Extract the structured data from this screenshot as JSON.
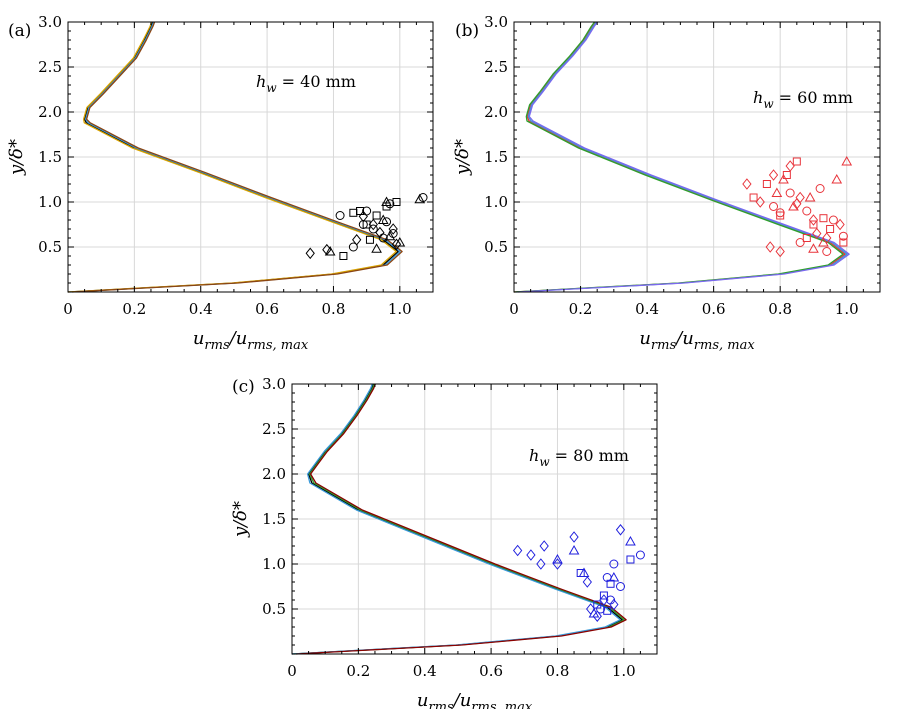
{
  "figure": {
    "colors": {
      "a": [
        "#000000",
        "#3a9ad9",
        "#d9a400",
        "#8b4513"
      ],
      "b": [
        "#e8333a",
        "#3a9ad9",
        "#2ca02c",
        "#7b68ee"
      ],
      "c": [
        "#000000",
        "#2ca02c",
        "#3a9ad9",
        "#8b0000"
      ],
      "a_markers": "#000000",
      "b_markers": "#e8333a",
      "c_markers": "#1f1fdd"
    }
  },
  "chart_data": [
    {
      "id": "a",
      "type": "line",
      "panel_label": "(a)",
      "annotation_prefix": "h",
      "annotation_sub": "w",
      "annotation_value": " = 40 mm",
      "xlabel_main": "u",
      "xlabel_sub1": "rms",
      "xlabel_mid": "/u",
      "xlabel_sub2": "rms, max",
      "ylabel": "y/δ*",
      "xlim": [
        0,
        1.1
      ],
      "ylim": [
        0,
        3.0
      ],
      "x_ticks": [
        0,
        0.2,
        0.4,
        0.6,
        0.8,
        1.0
      ],
      "x_tick_labels": [
        "0",
        "0.2",
        "0.4",
        "0.6",
        "0.8",
        "1.0"
      ],
      "y_ticks": [
        0.5,
        1.0,
        1.5,
        2.0,
        2.5,
        3.0
      ],
      "y_tick_labels": [
        "0.5",
        "1.0",
        "1.5",
        "2.0",
        "2.5",
        "3.0"
      ],
      "grid": true,
      "curve": {
        "x": [
          0.0,
          0.2,
          0.5,
          0.8,
          0.95,
          0.995,
          0.95,
          0.8,
          0.6,
          0.4,
          0.2,
          0.055,
          0.05,
          0.06,
          0.1,
          0.15,
          0.2,
          0.23,
          0.25,
          0.255
        ],
        "y": [
          0.0,
          0.04,
          0.1,
          0.2,
          0.3,
          0.45,
          0.58,
          0.78,
          1.05,
          1.33,
          1.6,
          1.88,
          1.92,
          2.05,
          2.2,
          2.4,
          2.6,
          2.8,
          2.95,
          3.0
        ]
      },
      "markers": {
        "circle": {
          "x": [
            0.82,
            0.86,
            0.9,
            0.95,
            0.98,
            1.07,
            0.92,
            0.96,
            0.89,
            0.97
          ],
          "y": [
            0.85,
            0.5,
            0.9,
            0.6,
            0.65,
            1.05,
            0.7,
            0.78,
            0.75,
            0.98
          ]
        },
        "square": {
          "x": [
            0.83,
            0.88,
            0.9,
            0.93,
            0.99,
            0.96,
            0.91,
            0.86
          ],
          "y": [
            0.4,
            0.9,
            0.75,
            0.85,
            1.0,
            0.95,
            0.58,
            0.88
          ]
        },
        "triangle": {
          "x": [
            0.79,
            0.93,
            0.95,
            0.96,
            1.0,
            1.06,
            0.97
          ],
          "y": [
            0.45,
            0.48,
            0.8,
            1.0,
            0.55,
            1.03,
            0.62
          ]
        },
        "diamond": {
          "x": [
            0.73,
            0.78,
            0.87,
            0.92,
            0.98,
            0.94,
            0.99,
            0.89
          ],
          "y": [
            0.43,
            0.47,
            0.58,
            0.75,
            0.7,
            0.66,
            0.53,
            0.84
          ]
        }
      }
    },
    {
      "id": "b",
      "type": "line",
      "panel_label": "(b)",
      "annotation_prefix": "h",
      "annotation_sub": "w",
      "annotation_value": " = 60 mm",
      "xlabel_main": "u",
      "xlabel_sub1": "rms",
      "xlabel_mid": "/u",
      "xlabel_sub2": "rms, max",
      "ylabel": "y/δ*",
      "xlim": [
        0,
        1.1
      ],
      "ylim": [
        0,
        3.0
      ],
      "x_ticks": [
        0,
        0.2,
        0.4,
        0.6,
        0.8,
        1.0
      ],
      "x_tick_labels": [
        "0",
        "0.2",
        "0.4",
        "0.6",
        "0.8",
        "1.0"
      ],
      "y_ticks": [
        0.5,
        1.0,
        1.5,
        2.0,
        2.5,
        3.0
      ],
      "y_tick_labels": [
        "0.5",
        "1.0",
        "1.5",
        "2.0",
        "2.5",
        "3.0"
      ],
      "grid": true,
      "curve": {
        "x": [
          0.0,
          0.2,
          0.5,
          0.8,
          0.95,
          0.995,
          0.95,
          0.8,
          0.6,
          0.4,
          0.2,
          0.045,
          0.04,
          0.05,
          0.08,
          0.12,
          0.17,
          0.21,
          0.235,
          0.245
        ],
        "y": [
          0.0,
          0.04,
          0.1,
          0.2,
          0.3,
          0.42,
          0.55,
          0.75,
          1.02,
          1.3,
          1.6,
          1.9,
          1.95,
          2.08,
          2.22,
          2.42,
          2.62,
          2.8,
          2.95,
          3.0
        ]
      },
      "markers": {
        "circle": {
          "x": [
            0.78,
            0.83,
            0.88,
            0.92,
            0.96,
            0.99,
            0.86,
            0.8,
            0.94
          ],
          "y": [
            0.95,
            1.1,
            0.9,
            1.15,
            0.8,
            0.62,
            0.55,
            0.88,
            0.45
          ]
        },
        "square": {
          "x": [
            0.72,
            0.76,
            0.8,
            0.85,
            0.9,
            0.95,
            0.99,
            0.82,
            0.88,
            0.93
          ],
          "y": [
            1.05,
            1.2,
            0.85,
            1.45,
            0.75,
            0.7,
            0.55,
            1.3,
            0.6,
            0.82
          ]
        },
        "triangle": {
          "x": [
            0.79,
            0.84,
            0.89,
            0.93,
            0.97,
            1.0,
            0.81,
            0.9
          ],
          "y": [
            1.1,
            0.95,
            1.05,
            0.55,
            1.25,
            1.45,
            1.25,
            0.48
          ]
        },
        "diamond": {
          "x": [
            0.7,
            0.74,
            0.77,
            0.8,
            0.83,
            0.86,
            0.9,
            0.94,
            0.98,
            0.78,
            0.85,
            0.91
          ],
          "y": [
            1.2,
            1.0,
            0.5,
            0.45,
            1.4,
            1.05,
            0.8,
            0.6,
            0.75,
            1.3,
            0.98,
            0.65
          ]
        }
      }
    },
    {
      "id": "c",
      "type": "line",
      "panel_label": "(c)",
      "annotation_prefix": "h",
      "annotation_sub": "w",
      "annotation_value": " = 80 mm",
      "xlabel_main": "u",
      "xlabel_sub1": "rms",
      "xlabel_mid": "/u",
      "xlabel_sub2": "rms, max",
      "ylabel": "y/δ*",
      "xlim": [
        0,
        1.1
      ],
      "ylim": [
        0,
        3.0
      ],
      "x_ticks": [
        0,
        0.2,
        0.4,
        0.6,
        0.8,
        1.0
      ],
      "x_tick_labels": [
        "0",
        "0.2",
        "0.4",
        "0.6",
        "0.8",
        "1.0"
      ],
      "y_ticks": [
        0.5,
        1.0,
        1.5,
        2.0,
        2.5,
        3.0
      ],
      "y_tick_labels": [
        "0.5",
        "1.0",
        "1.5",
        "2.0",
        "2.5",
        "3.0"
      ],
      "grid": true,
      "curve": {
        "x": [
          0.0,
          0.2,
          0.5,
          0.8,
          0.95,
          0.995,
          0.95,
          0.8,
          0.6,
          0.4,
          0.2,
          0.06,
          0.05,
          0.07,
          0.1,
          0.15,
          0.19,
          0.22,
          0.24,
          0.245
        ],
        "y": [
          0.0,
          0.04,
          0.1,
          0.2,
          0.3,
          0.38,
          0.52,
          0.72,
          1.0,
          1.3,
          1.6,
          1.9,
          2.0,
          2.1,
          2.25,
          2.45,
          2.65,
          2.82,
          2.95,
          3.0
        ]
      },
      "markers": {
        "circle": {
          "x": [
            0.93,
            0.95,
            0.97,
            0.99,
            1.05,
            0.96
          ],
          "y": [
            0.5,
            0.85,
            1.0,
            0.75,
            1.1,
            0.6
          ]
        },
        "square": {
          "x": [
            0.87,
            0.92,
            0.94,
            0.96,
            1.02,
            0.95
          ],
          "y": [
            0.9,
            0.55,
            0.65,
            0.78,
            1.05,
            0.48
          ]
        },
        "triangle": {
          "x": [
            0.8,
            0.85,
            0.88,
            0.91,
            0.97,
            1.02
          ],
          "y": [
            1.05,
            1.15,
            0.9,
            0.45,
            0.85,
            1.25
          ]
        },
        "diamond": {
          "x": [
            0.68,
            0.72,
            0.76,
            0.8,
            0.85,
            0.89,
            0.92,
            0.94,
            0.97,
            0.99,
            0.75,
            0.9
          ],
          "y": [
            1.15,
            1.1,
            1.2,
            1.0,
            1.3,
            0.8,
            0.42,
            0.6,
            0.55,
            1.38,
            1.0,
            0.5
          ]
        }
      }
    }
  ]
}
